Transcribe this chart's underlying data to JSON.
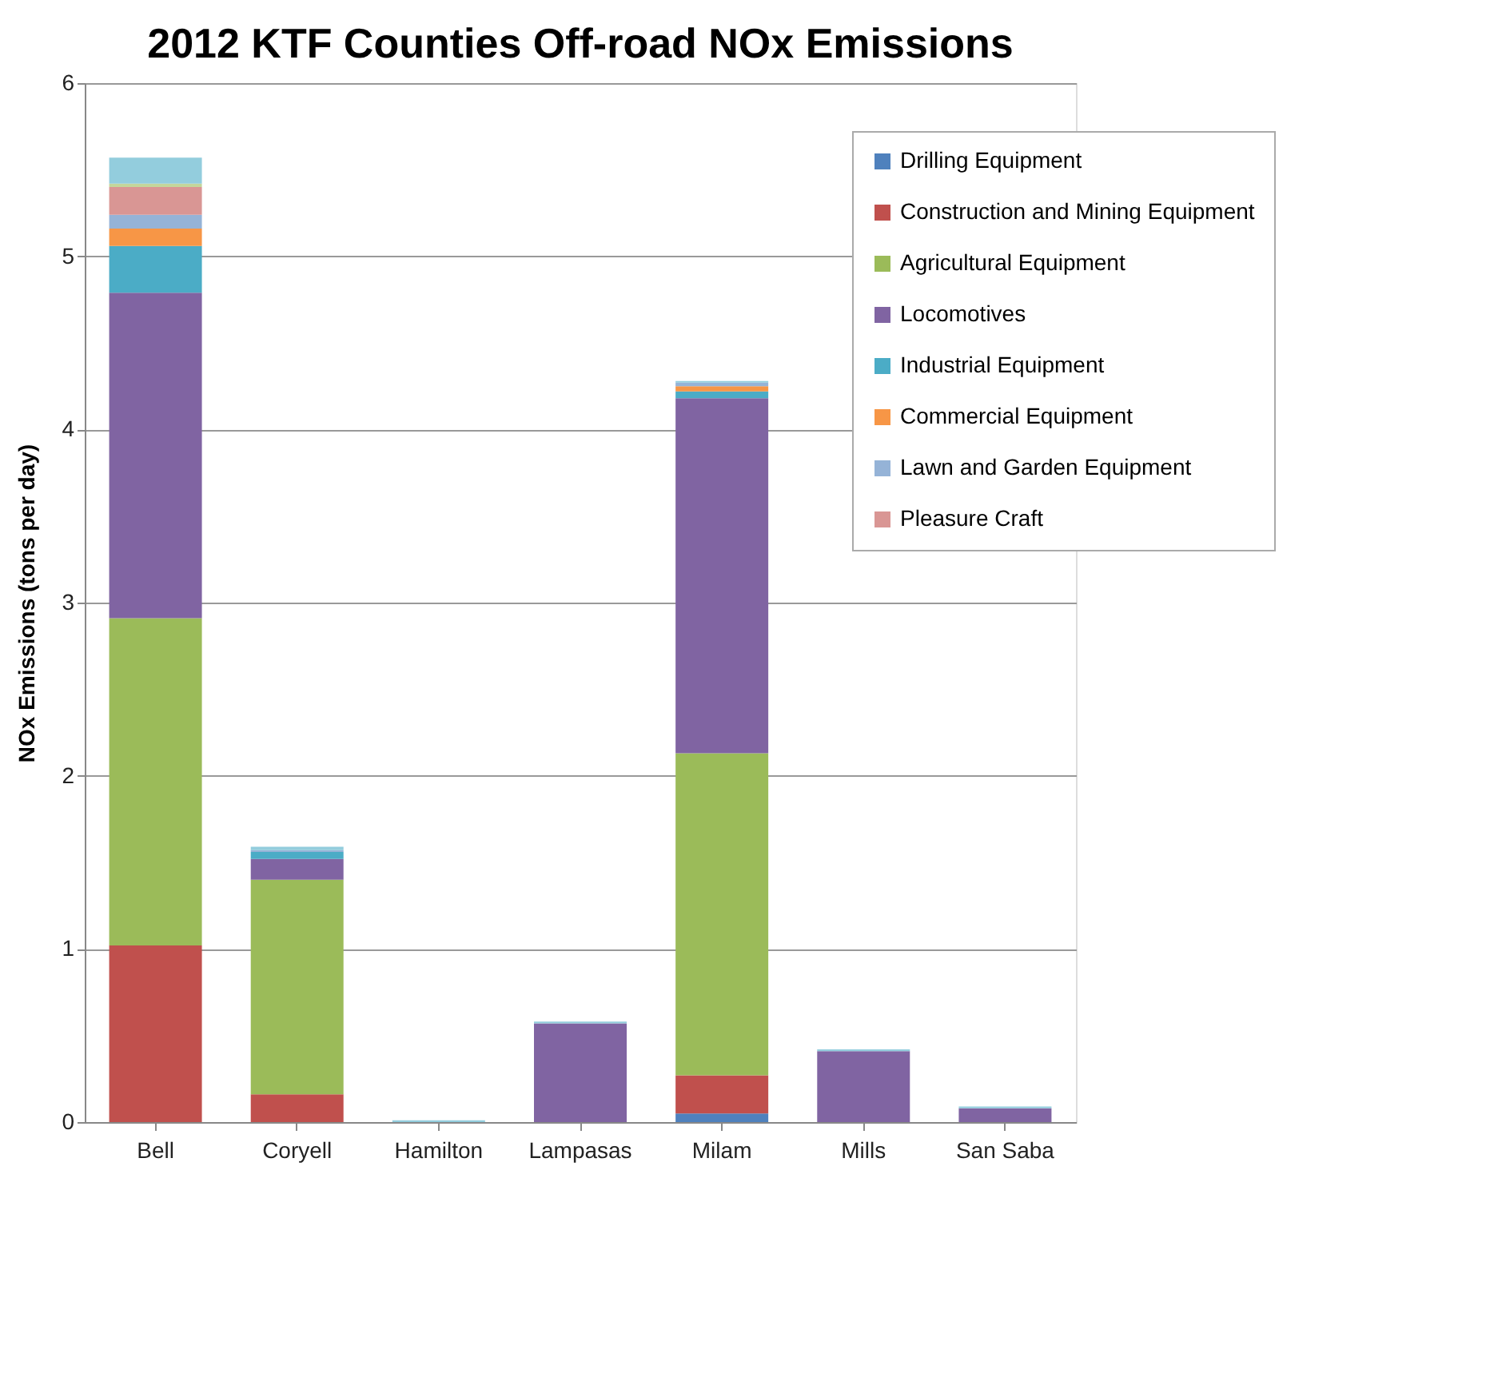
{
  "chart_data": {
    "type": "bar",
    "stacked": true,
    "title": "2012 KTF Counties Off-road NOx Emissions",
    "ylabel": "NOx Emissions (tons per day)",
    "categories": [
      "Bell",
      "Coryell",
      "Hamilton",
      "Lampasas",
      "Milam",
      "Mills",
      "San Saba"
    ],
    "series": [
      {
        "name": "Drilling Equipment",
        "color": "#4f81bd",
        "values": [
          null,
          null,
          null,
          null,
          0.05,
          null,
          null
        ]
      },
      {
        "name": "Construction and Mining Equipment",
        "color": "#c0504d",
        "values": [
          1.02,
          0.16,
          null,
          null,
          0.22,
          null,
          null
        ]
      },
      {
        "name": "Agricultural Equipment",
        "color": "#9bbb59",
        "values": [
          1.89,
          1.24,
          null,
          null,
          1.86,
          null,
          null
        ]
      },
      {
        "name": "Locomotives",
        "color": "#8064a2",
        "values": [
          1.88,
          0.12,
          null,
          0.57,
          2.05,
          0.41,
          0.08
        ]
      },
      {
        "name": "Industrial Equipment",
        "color": "#4bacc6",
        "values": [
          0.27,
          0.04,
          null,
          null,
          0.04,
          null,
          null
        ]
      },
      {
        "name": "Commercial Equipment",
        "color": "#f79646",
        "values": [
          0.1,
          null,
          null,
          null,
          0.03,
          null,
          null
        ]
      },
      {
        "name": "Lawn and Garden Equipment",
        "color": "#95b3d7",
        "values": [
          0.08,
          0.01,
          null,
          null,
          0.02,
          null,
          null
        ]
      },
      {
        "name": "Pleasure Craft",
        "color": "#d99694",
        "values": [
          0.16,
          null,
          null,
          null,
          null,
          null,
          null
        ]
      },
      {
        "color": "#c3d69b",
        "values": [
          0.02,
          null,
          null,
          null,
          null,
          null,
          null
        ]
      },
      {
        "color": "#93cddd",
        "values": [
          0.15,
          0.02,
          0.01,
          0.01,
          0.01,
          0.01,
          0.01
        ]
      }
    ],
    "ylim": [
      0,
      6
    ],
    "yticks": [
      0,
      1,
      2,
      3,
      4,
      5,
      6
    ],
    "grid": "y",
    "legend": "top right"
  }
}
